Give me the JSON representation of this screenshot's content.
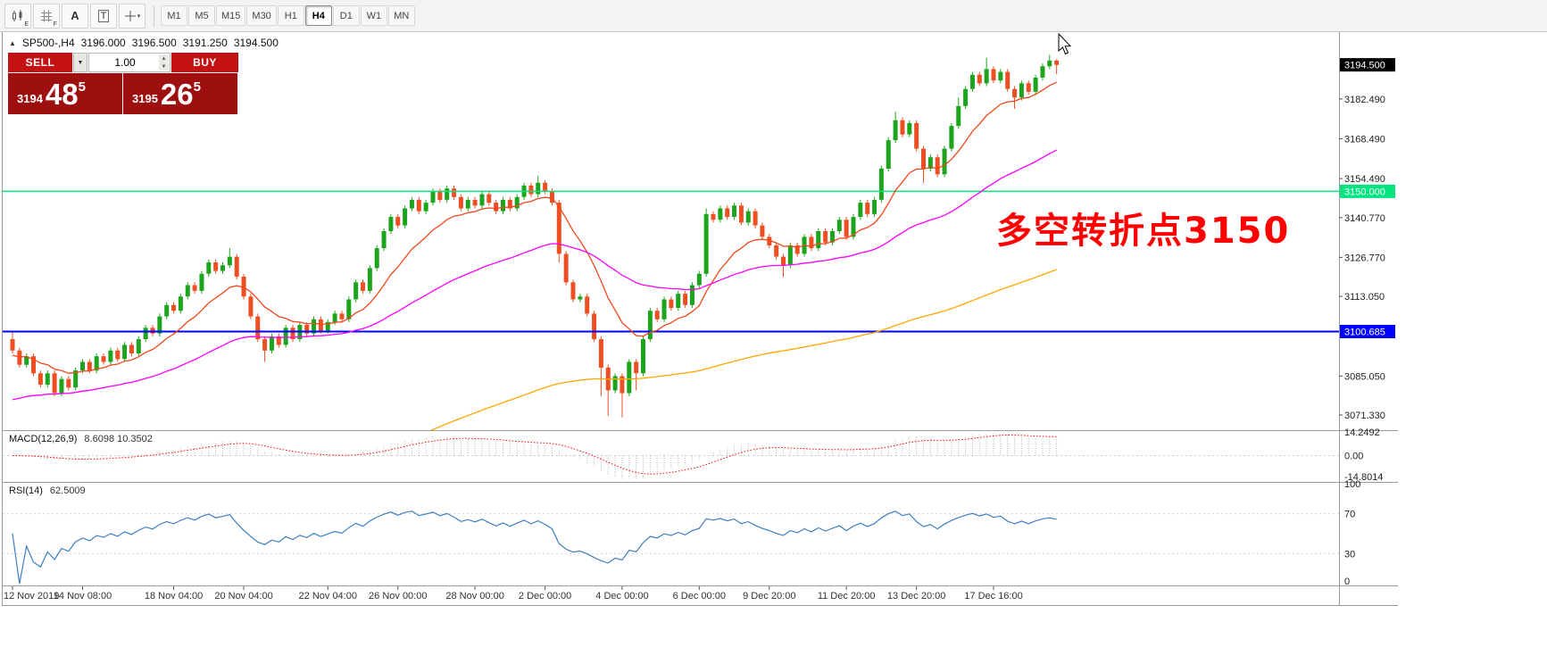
{
  "toolbar": {
    "tools": [
      {
        "name": "chart-type",
        "badge": "E"
      },
      {
        "name": "indicators-grid",
        "badge": "F"
      },
      {
        "name": "text-label",
        "label": "A"
      },
      {
        "name": "text-tool",
        "label": "T"
      },
      {
        "name": "crosshair",
        "arrow": "▾"
      }
    ],
    "timeframes": [
      {
        "label": "M1"
      },
      {
        "label": "M5"
      },
      {
        "label": "M15"
      },
      {
        "label": "M30"
      },
      {
        "label": "H1"
      },
      {
        "label": "H4",
        "active": true
      },
      {
        "label": "D1"
      },
      {
        "label": "W1"
      },
      {
        "label": "MN"
      }
    ]
  },
  "trade_panel": {
    "sell_label": "SELL",
    "buy_label": "BUY",
    "volume": "1.00",
    "dropdown_glyph": "▼",
    "spin_up": "▲",
    "spin_down": "▼",
    "bid": {
      "main": "3194",
      "big": "48",
      "sup": "5"
    },
    "ask": {
      "main": "3195",
      "big": "26",
      "sup": "5"
    }
  },
  "annotation": {
    "text": "多空转折点3150",
    "color": "#ff0000"
  },
  "colors": {
    "bull": "#1ca41c",
    "bear": "#ee4f22",
    "macd_hist": "#b5b5b5",
    "macd_signal": "#ff0000",
    "rsi": "#3e7fc1",
    "current_badge_bg": "#000000",
    "button_red": "#c41113",
    "price_box_red": "#9e0f10"
  },
  "chart_data": {
    "type": "candlestick",
    "title_marker": "▲",
    "title_symbol": "SP500-,H4",
    "last_ohlc": {
      "open": "3196.000",
      "high": "3196.500",
      "low": "3191.250",
      "close": "3194.500"
    },
    "price_axis": {
      "min": 3066,
      "max": 3206,
      "ticks": [
        {
          "label": "3182.490",
          "value": 3182.49
        },
        {
          "label": "3168.490",
          "value": 3168.49
        },
        {
          "label": "3154.490",
          "value": 3154.49
        },
        {
          "label": "3140.770",
          "value": 3140.77
        },
        {
          "label": "3126.770",
          "value": 3126.77
        },
        {
          "label": "3113.050",
          "value": 3113.05
        },
        {
          "label": "3085.050",
          "value": 3085.05
        },
        {
          "label": "3071.330",
          "value": 3071.33
        }
      ]
    },
    "current_price": {
      "value": 3194.5,
      "label": "3194.500"
    },
    "horizontal_lines": [
      {
        "value": 3150.0,
        "label": "3150.000",
        "color": "#00e57d",
        "width": 1.5,
        "text_color": "#ffffff"
      },
      {
        "value": 3100.685,
        "label": "3100.685",
        "color": "#0000ff",
        "width": 2,
        "text_color": "#ffffff"
      }
    ],
    "time_axis": [
      {
        "label": "12 Nov 2019",
        "bar": 0
      },
      {
        "label": "14 Nov 08:00",
        "bar": 10
      },
      {
        "label": "18 Nov 04:00",
        "bar": 23
      },
      {
        "label": "20 Nov 04:00",
        "bar": 33
      },
      {
        "label": "22 Nov 04:00",
        "bar": 45
      },
      {
        "label": "26 Nov 00:00",
        "bar": 55
      },
      {
        "label": "28 Nov 00:00",
        "bar": 66
      },
      {
        "label": "2 Dec 00:00",
        "bar": 76
      },
      {
        "label": "4 Dec 00:00",
        "bar": 87
      },
      {
        "label": "6 Dec 00:00",
        "bar": 98
      },
      {
        "label": "9 Dec 20:00",
        "bar": 108
      },
      {
        "label": "11 Dec 20:00",
        "bar": 119
      },
      {
        "label": "13 Dec 20:00",
        "bar": 129
      },
      {
        "label": "17 Dec 16:00",
        "bar": 140
      }
    ],
    "candles": {
      "first_open": 3098,
      "default_wick": 1.0,
      "closes": [
        3094,
        3089,
        3092,
        3086,
        3082,
        3086,
        3079,
        3084,
        3081,
        3087,
        3090,
        3087,
        3092,
        3090,
        3094,
        3091,
        3096,
        3093,
        3098,
        3102,
        3100,
        3106,
        3110,
        3108,
        3113,
        3117,
        3115,
        3121,
        3125,
        3122,
        3124,
        3127,
        3120,
        3113,
        3106,
        3098,
        3094,
        3099,
        3096,
        3102,
        3098,
        3103,
        3100,
        3105,
        3101,
        3104,
        3107,
        3105,
        3112,
        3118,
        3115,
        3123,
        3130,
        3136,
        3141,
        3138,
        3144,
        3147,
        3143,
        3146,
        3150,
        3147,
        3151,
        3148,
        3144,
        3147,
        3145,
        3149,
        3146,
        3143,
        3147,
        3144,
        3148,
        3152,
        3149,
        3153,
        3150,
        3146,
        3128,
        3118,
        3112,
        3113,
        3107,
        3098,
        3088,
        3080,
        3085,
        3079,
        3090,
        3086,
        3098,
        3108,
        3105,
        3112,
        3109,
        3114,
        3110,
        3117,
        3121,
        3142,
        3140,
        3144,
        3141,
        3145,
        3139,
        3143,
        3138,
        3134,
        3131,
        3127,
        3124,
        3131,
        3128,
        3134,
        3130,
        3136,
        3132,
        3136,
        3140,
        3134,
        3141,
        3146,
        3142,
        3147,
        3158,
        3168,
        3175,
        3170,
        3174,
        3165,
        3158,
        3162,
        3156,
        3165,
        3173,
        3180,
        3186,
        3191,
        3188,
        3193,
        3189,
        3192,
        3186,
        3183,
        3188,
        3185,
        3190,
        3194,
        3196,
        3194.5
      ],
      "high_overrides": {
        "0": 3101,
        "31": 3130,
        "75": 3155.5,
        "99": 3144,
        "126": 3178,
        "135": 3183,
        "139": 3197,
        "148": 3198,
        "149": 3196.5
      },
      "low_overrides": {
        "36": 3090,
        "78": 3125,
        "84": 3078,
        "85": 3071,
        "87": 3070.5,
        "89": 3080,
        "110": 3120,
        "130": 3153,
        "143": 3179,
        "149": 3191.25
      }
    },
    "moving_averages": [
      {
        "name": "fast",
        "period": 12,
        "seed": 3092,
        "color": "#f0481c"
      },
      {
        "name": "mid",
        "period": 48,
        "seed": 3076,
        "color": "#ff00ff"
      },
      {
        "name": "slow",
        "period": 160,
        "seed": 3015,
        "color": "#ffa500"
      }
    ],
    "macd": {
      "label": "MACD(12,26,9)",
      "values": "8.6098 10.3502",
      "fast": 12,
      "slow": 26,
      "signal": 9,
      "range": {
        "min": -14.8014,
        "max": 14.2492
      },
      "axis": [
        {
          "label": "14.2492",
          "value": 14.2492
        },
        {
          "label": "0.00",
          "value": 0
        },
        {
          "label": "-14.8014",
          "value": -14.8014
        }
      ]
    },
    "rsi": {
      "label": "RSI(14)",
      "value": "62.5009",
      "period": 14,
      "levels": [
        70,
        30
      ],
      "axis": [
        {
          "label": "100",
          "value": 100
        },
        {
          "label": "70",
          "value": 70
        },
        {
          "label": "30",
          "value": 30
        },
        {
          "label": "0",
          "value": 0
        }
      ]
    }
  }
}
